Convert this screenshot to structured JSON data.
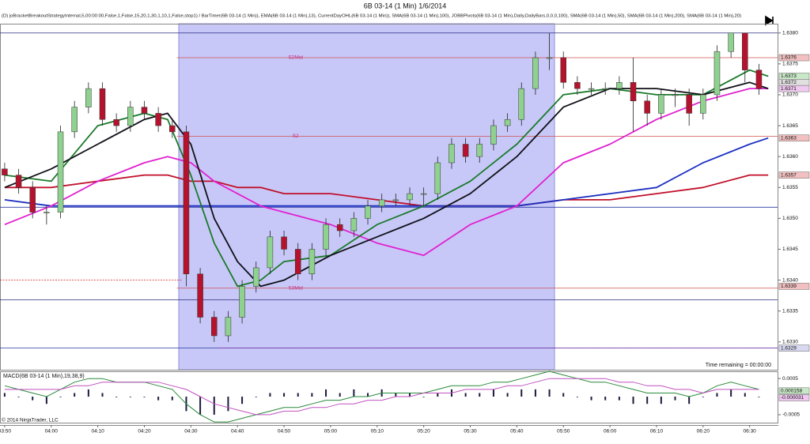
{
  "chart_data": [
    {
      "type": "candlestick",
      "title": "6B 03-14 (1 Min)  1/6/2014",
      "indicators_text": "(D) joBracketBreakoutStrategyInternal,5,00:00:00,False,1,False,15,20,1,30,1,10,1,False,stop1) / BarTimer(6B 03-14 (1 Min)), EMA(6B 03-14 (1 Min),13), CurrentDayOHL(6B 03-14 (1 Min)), SMA(6B 03-14 (1 Min),100), JOBBPivots(6B 03-14 (1 Min),Daily,DailyBars,0,0,0,100), SMA(6B 03-14 (1 Min),50), SMA(6B 03-14 (1 Min),200), SMA(6B 03-14 (1 Min),20)",
      "annotation": "Time remaining = 00:00:00",
      "up_color": "#8fd18f",
      "down_color": "#b5122e",
      "xlim": [
        "03:49",
        "06:36"
      ],
      "ylim": [
        1.63255,
        1.63815
      ],
      "yticks": [
        {
          "value": 1.633,
          "label": "1.6330"
        },
        {
          "value": 1.6335,
          "label": "1.6335"
        },
        {
          "value": 1.634,
          "label": "1.6340"
        },
        {
          "value": 1.6345,
          "label": "1.6345"
        },
        {
          "value": 1.635,
          "label": "1.6350"
        },
        {
          "value": 1.6355,
          "label": "1.6355"
        },
        {
          "value": 1.636,
          "label": "1.6360"
        },
        {
          "value": 1.6365,
          "label": "1.6365"
        },
        {
          "value": 1.637,
          "label": "1.6370"
        },
        {
          "value": 1.6375,
          "label": "1.6375"
        },
        {
          "value": 1.638,
          "label": "1.6380"
        }
      ],
      "x": [
        "03:50",
        "03:53",
        "03:56",
        "03:59",
        "04:02",
        "04:05",
        "04:08",
        "04:11",
        "04:14",
        "04:17",
        "04:20",
        "04:23",
        "04:26",
        "04:29",
        "04:32",
        "04:35",
        "04:38",
        "04:41",
        "04:44",
        "04:47",
        "04:50",
        "04:53",
        "04:56",
        "04:59",
        "05:02",
        "05:05",
        "05:08",
        "05:11",
        "05:14",
        "05:17",
        "05:20",
        "05:23",
        "05:26",
        "05:29",
        "05:32",
        "05:35",
        "05:38",
        "05:41",
        "05:44",
        "05:47",
        "05:50",
        "05:53",
        "05:56",
        "05:59",
        "06:02",
        "06:05",
        "06:08",
        "06:11",
        "06:14",
        "06:17",
        "06:20",
        "06:23",
        "06:26",
        "06:29",
        "06:32"
      ],
      "open": [
        1.6358,
        1.6357,
        1.6355,
        1.6351,
        1.6351,
        1.6364,
        1.6368,
        1.6371,
        1.6366,
        1.6365,
        1.6368,
        1.6367,
        1.6365,
        1.6364,
        1.6341,
        1.6334,
        1.6331,
        1.6334,
        1.6339,
        1.6342,
        1.6347,
        1.6345,
        1.6341,
        1.6345,
        1.6349,
        1.6348,
        1.635,
        1.6352,
        1.6353,
        1.6353,
        1.6354,
        1.6354,
        1.6359,
        1.6362,
        1.636,
        1.6362,
        1.6365,
        1.6366,
        1.6371,
        1.6376,
        1.6376,
        1.6372,
        1.6371,
        1.6371,
        1.6371,
        1.6372,
        1.6369,
        1.6367,
        1.637,
        1.637,
        1.6367,
        1.637,
        1.6377,
        1.638,
        1.6374
      ],
      "high": [
        1.6359,
        1.6358,
        1.6356,
        1.6352,
        1.6365,
        1.6369,
        1.6372,
        1.6372,
        1.6367,
        1.6369,
        1.6369,
        1.6368,
        1.6366,
        1.6365,
        1.6342,
        1.6335,
        1.6335,
        1.634,
        1.6343,
        1.6348,
        1.6348,
        1.6346,
        1.6346,
        1.635,
        1.635,
        1.6351,
        1.6353,
        1.6354,
        1.6354,
        1.6355,
        1.6355,
        1.636,
        1.6363,
        1.6363,
        1.6363,
        1.6366,
        1.6367,
        1.6372,
        1.6377,
        1.638,
        1.6377,
        1.6373,
        1.6372,
        1.6372,
        1.6373,
        1.6376,
        1.637,
        1.6371,
        1.6371,
        1.6371,
        1.6371,
        1.6378,
        1.638,
        1.638,
        1.6375
      ],
      "low": [
        1.6356,
        1.6354,
        1.635,
        1.6349,
        1.635,
        1.6363,
        1.6367,
        1.6365,
        1.6364,
        1.6364,
        1.6366,
        1.6364,
        1.6363,
        1.6339,
        1.6333,
        1.633,
        1.633,
        1.6333,
        1.6338,
        1.6341,
        1.6344,
        1.634,
        1.634,
        1.6344,
        1.6347,
        1.6347,
        1.6349,
        1.6351,
        1.6352,
        1.6352,
        1.6352,
        1.6353,
        1.6358,
        1.6359,
        1.6359,
        1.6361,
        1.6364,
        1.6365,
        1.637,
        1.6374,
        1.6371,
        1.637,
        1.637,
        1.637,
        1.637,
        1.6364,
        1.6365,
        1.6366,
        1.6368,
        1.6365,
        1.6366,
        1.6369,
        1.6376,
        1.6372,
        1.637
      ],
      "close": [
        1.6357,
        1.6355,
        1.6351,
        1.6351,
        1.6364,
        1.6368,
        1.6371,
        1.6366,
        1.6365,
        1.6368,
        1.6367,
        1.6365,
        1.6364,
        1.6341,
        1.6334,
        1.6331,
        1.6334,
        1.6339,
        1.6342,
        1.6347,
        1.6345,
        1.6341,
        1.6345,
        1.6349,
        1.6348,
        1.635,
        1.6352,
        1.6353,
        1.6353,
        1.6354,
        1.6354,
        1.6359,
        1.6362,
        1.636,
        1.6362,
        1.6365,
        1.6366,
        1.6371,
        1.6376,
        1.6376,
        1.6372,
        1.6371,
        1.6371,
        1.6371,
        1.6372,
        1.6369,
        1.6367,
        1.637,
        1.637,
        1.6367,
        1.637,
        1.6377,
        1.638,
        1.6374,
        1.6371
      ],
      "series": [
        {
          "color": "#c0102a",
          "x": [
            "03:50",
            "04:00",
            "04:10",
            "04:20",
            "04:25",
            "04:30",
            "04:35",
            "04:40",
            "04:45",
            "04:50",
            "05:00",
            "05:10",
            "05:20",
            "05:30",
            "05:40",
            "05:50",
            "06:00",
            "06:10",
            "06:20",
            "06:30",
            "06:34"
          ],
          "values": [
            1.6355,
            1.6355,
            1.6356,
            1.6357,
            1.6357,
            1.6356,
            1.6356,
            1.6355,
            1.6355,
            1.6354,
            1.6354,
            1.6353,
            1.6352,
            1.6352,
            1.6352,
            1.6353,
            1.6353,
            1.6354,
            1.6355,
            1.6357,
            1.6357
          ]
        },
        {
          "color": "#1c2fc0",
          "x": [
            "03:50",
            "04:00",
            "04:10",
            "04:20",
            "04:25",
            "04:30",
            "04:35",
            "04:40",
            "04:45",
            "04:50",
            "05:00",
            "05:10",
            "05:20",
            "05:30",
            "05:40",
            "05:50",
            "06:00",
            "06:10",
            "06:20",
            "06:30",
            "06:34"
          ],
          "values": [
            1.6353,
            1.6352,
            1.6352,
            1.6352,
            1.6352,
            1.6352,
            1.6352,
            1.6352,
            1.6352,
            1.6352,
            1.6352,
            1.6352,
            1.6352,
            1.6352,
            1.6352,
            1.6353,
            1.6354,
            1.6355,
            1.6359,
            1.6362,
            1.6363
          ]
        },
        {
          "color": "#e020d0",
          "x": [
            "03:50",
            "04:00",
            "04:10",
            "04:20",
            "04:25",
            "04:30",
            "04:35",
            "04:40",
            "04:45",
            "04:50",
            "05:00",
            "05:10",
            "05:20",
            "05:30",
            "05:40",
            "05:50",
            "06:00",
            "06:10",
            "06:20",
            "06:30",
            "06:34"
          ],
          "values": [
            1.6349,
            1.6352,
            1.6356,
            1.6359,
            1.636,
            1.6359,
            1.6356,
            1.6354,
            1.6352,
            1.6351,
            1.6349,
            1.6346,
            1.6344,
            1.6349,
            1.6352,
            1.6359,
            1.6362,
            1.6366,
            1.6369,
            1.6371,
            1.6371
          ]
        },
        {
          "color": "#1a7a2a",
          "x": [
            "03:50",
            "04:00",
            "04:10",
            "04:20",
            "04:25",
            "04:30",
            "04:35",
            "04:40",
            "04:45",
            "04:50",
            "05:00",
            "05:10",
            "05:20",
            "05:30",
            "05:40",
            "05:50",
            "06:00",
            "06:10",
            "06:20",
            "06:30",
            "06:34"
          ],
          "values": [
            1.6357,
            1.6356,
            1.6365,
            1.6367,
            1.6366,
            1.6357,
            1.6346,
            1.6339,
            1.634,
            1.6343,
            1.6344,
            1.6349,
            1.6352,
            1.6356,
            1.6362,
            1.637,
            1.6371,
            1.637,
            1.637,
            1.6374,
            1.6373
          ]
        },
        {
          "color": "#101018",
          "x": [
            "03:50",
            "04:00",
            "04:10",
            "04:20",
            "04:25",
            "04:30",
            "04:35",
            "04:40",
            "04:45",
            "04:50",
            "05:00",
            "05:10",
            "05:20",
            "05:30",
            "05:40",
            "05:50",
            "06:00",
            "06:10",
            "06:20",
            "06:30",
            "06:34"
          ],
          "values": [
            1.6355,
            1.6358,
            1.6362,
            1.6366,
            1.6367,
            1.6362,
            1.635,
            1.6343,
            1.6339,
            1.634,
            1.6344,
            1.6347,
            1.635,
            1.6354,
            1.636,
            1.6368,
            1.6371,
            1.6371,
            1.637,
            1.6372,
            1.6371
          ]
        }
      ],
      "levels": [
        {
          "value": 1.638,
          "color": "#2a2a80"
        },
        {
          "value": 1.6376,
          "label": "S2Mid",
          "color": "#d05050",
          "from": "04:27"
        },
        {
          "value": 1.63633,
          "label": "S2",
          "color": "#d05050",
          "from": "04:27"
        },
        {
          "value": 1.63518,
          "color": "#2a3aa0"
        },
        {
          "value": 1.634,
          "color": "#d02020",
          "to": "04:28",
          "dashed": true
        },
        {
          "value": 1.63387,
          "label": "S3Mid",
          "color": "#d05050",
          "from": "04:27"
        },
        {
          "value": 1.63368,
          "color": "#2a2a80"
        },
        {
          "value": 1.6329,
          "color": "#2a3aa0"
        },
        {
          "value": 1.6329,
          "color": "#a020a0",
          "from": "04:36",
          "dashed": true
        }
      ],
      "price_markers": [
        {
          "value": 1.6376,
          "color": "#f2c0c0"
        },
        {
          "value": 1.6373,
          "color": "#c8e8c8"
        },
        {
          "value": 1.6372,
          "color": "#e0e0e0"
        },
        {
          "value": 1.6371,
          "color": "#f0c8f0"
        },
        {
          "value": 1.6363,
          "color": "#f2c0c0"
        },
        {
          "value": 1.6357,
          "color": "#f2c0c0"
        },
        {
          "value": 1.6339,
          "color": "#f2c0c0"
        },
        {
          "value": 1.6329,
          "color": "#d8d8f0"
        }
      ]
    },
    {
      "type": "macd",
      "title": "MACD(6B 03-14 (1 Min),19,38,9)",
      "copyright": "© 2014 NinjaTrader, LLC",
      "ylim": [
        -0.00072,
        0.0007
      ],
      "yticks": [
        -0.0005,
        0.0005
      ],
      "xlim": [
        "03:49",
        "06:36"
      ],
      "xticks": [
        "03:50",
        "04:00",
        "04:10",
        "04:20",
        "04:30",
        "04:40",
        "04:50",
        "05:00",
        "05:10",
        "05:20",
        "05:30",
        "05:40",
        "05:50",
        "06:00",
        "06:10",
        "06:20",
        "06:30"
      ],
      "x": [
        "03:50",
        "03:53",
        "03:56",
        "03:59",
        "04:02",
        "04:05",
        "04:08",
        "04:11",
        "04:14",
        "04:17",
        "04:20",
        "04:23",
        "04:26",
        "04:29",
        "04:32",
        "04:35",
        "04:38",
        "04:41",
        "04:44",
        "04:47",
        "04:50",
        "04:53",
        "04:56",
        "04:59",
        "05:02",
        "05:05",
        "05:08",
        "05:11",
        "05:14",
        "05:17",
        "05:20",
        "05:23",
        "05:26",
        "05:29",
        "05:32",
        "05:35",
        "05:38",
        "05:41",
        "05:44",
        "05:47",
        "05:50",
        "05:53",
        "05:56",
        "05:59",
        "06:02",
        "06:05",
        "06:08",
        "06:11",
        "06:14",
        "06:17",
        "06:20",
        "06:23",
        "06:26",
        "06:29",
        "06:32"
      ],
      "histogram": [
        0.0001,
        0,
        -0.0001,
        -0.0002,
        0,
        0.0001,
        0.0002,
        0.0001,
        0,
        0,
        0,
        -0.0001,
        -0.0001,
        -0.0004,
        -0.0005,
        -0.0005,
        -0.0004,
        -0.0002,
        0,
        0.0001,
        0.0001,
        0.0001,
        0.0001,
        0.0002,
        0.0001,
        0.0002,
        0.0001,
        0.0002,
        0.0001,
        0.0001,
        0,
        0.0001,
        0.0002,
        0.0001,
        0.0001,
        0.0002,
        0.0001,
        0.0002,
        0.0002,
        0.0002,
        0.0001,
        0,
        -0.0001,
        -0.0001,
        -0.0001,
        -0.0002,
        -0.0002,
        -0.0002,
        -0.0001,
        -0.0002,
        0,
        0.0001,
        0.0002,
        0.0001,
        0
      ],
      "histogram_color": "#1a1a40",
      "series": [
        {
          "color": "#2a8a3a",
          "values": [
            0.0003,
            0.0002,
            0.0001,
            0,
            0.0002,
            0.0004,
            0.0005,
            0.0005,
            0.0004,
            0.0004,
            0.0004,
            0.0003,
            0.0002,
            -0.0002,
            -0.0005,
            -0.0007,
            -0.0007,
            -0.0006,
            -0.0005,
            -0.0004,
            -0.0003,
            -0.0003,
            -0.0002,
            -0.0001,
            -0.0001,
            0,
            0,
            0.0001,
            0.0001,
            0.0001,
            0.0001,
            0.0002,
            0.0003,
            0.0003,
            0.0003,
            0.0004,
            0.0004,
            0.0005,
            0.0006,
            0.0007,
            0.0006,
            0.0005,
            0.0004,
            0.0004,
            0.0003,
            0.0002,
            0.0001,
            0.0001,
            0.0001,
            0,
            0.0001,
            0.0003,
            0.0004,
            0.0003,
            0.0002
          ]
        },
        {
          "color": "#c050c0",
          "values": [
            0.0002,
            0.0002,
            0.0002,
            0.0002,
            0.0002,
            0.0003,
            0.0003,
            0.0004,
            0.0004,
            0.0004,
            0.0004,
            0.0004,
            0.0003,
            0.0002,
            0,
            -0.0002,
            -0.0003,
            -0.0004,
            -0.0005,
            -0.0005,
            -0.0004,
            -0.0004,
            -0.0003,
            -0.0003,
            -0.0002,
            -0.0002,
            -0.0001,
            -0.0001,
            0,
            0,
            0.0001,
            0.0001,
            0.0001,
            0.0002,
            0.0002,
            0.0002,
            0.0003,
            0.0003,
            0.0004,
            0.0005,
            0.0005,
            0.0005,
            0.0005,
            0.0005,
            0.0004,
            0.0004,
            0.0003,
            0.0003,
            0.0002,
            0.0002,
            0.0001,
            0.0002,
            0.0002,
            0.0002,
            0.0002
          ]
        }
      ],
      "markers": [
        {
          "value": 0.000158,
          "color": "#c8e8c8"
        },
        {
          "value": -3.1e-05,
          "color": "#f0c8f0"
        }
      ]
    }
  ]
}
